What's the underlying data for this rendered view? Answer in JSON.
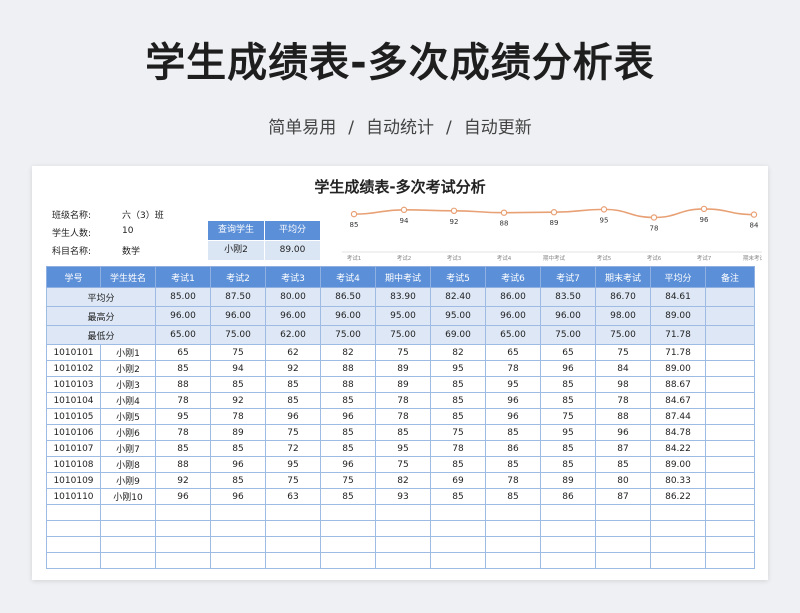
{
  "header": {
    "title": "学生成绩表-多次成绩分析表",
    "tags": [
      "简单易用",
      "自动统计",
      "自动更新"
    ],
    "sep": "/"
  },
  "sheet": {
    "title": "学生成绩表-多次考试分析",
    "info": [
      {
        "label": "班级名称:",
        "value": "六（3）班"
      },
      {
        "label": "学生人数:",
        "value": "10"
      },
      {
        "label": "科目名称:",
        "value": "数学"
      }
    ],
    "query": {
      "header_name": "查询学生",
      "header_avg": "平均分",
      "student": "小刚2",
      "avg": "89.00"
    },
    "columns": [
      "学号",
      "学生姓名",
      "考试1",
      "考试2",
      "考试3",
      "考试4",
      "期中考试",
      "考试5",
      "考试6",
      "考试7",
      "期末考试",
      "平均分",
      "备注"
    ],
    "stats": [
      {
        "label": "平均分",
        "values": [
          "85.00",
          "87.50",
          "80.00",
          "86.50",
          "83.90",
          "82.40",
          "86.00",
          "83.50",
          "86.70",
          "84.61"
        ]
      },
      {
        "label": "最高分",
        "values": [
          "96.00",
          "96.00",
          "96.00",
          "96.00",
          "95.00",
          "95.00",
          "96.00",
          "96.00",
          "98.00",
          "89.00"
        ]
      },
      {
        "label": "最低分",
        "values": [
          "65.00",
          "75.00",
          "62.00",
          "75.00",
          "75.00",
          "69.00",
          "65.00",
          "75.00",
          "75.00",
          "71.78"
        ]
      }
    ],
    "rows": [
      [
        "1010101",
        "小刚1",
        "65",
        "75",
        "62",
        "82",
        "75",
        "82",
        "65",
        "65",
        "75",
        "71.78",
        ""
      ],
      [
        "1010102",
        "小刚2",
        "85",
        "94",
        "92",
        "88",
        "89",
        "95",
        "78",
        "96",
        "84",
        "89.00",
        ""
      ],
      [
        "1010103",
        "小刚3",
        "88",
        "85",
        "85",
        "88",
        "89",
        "85",
        "95",
        "85",
        "98",
        "88.67",
        ""
      ],
      [
        "1010104",
        "小刚4",
        "78",
        "92",
        "85",
        "85",
        "78",
        "85",
        "96",
        "85",
        "78",
        "84.67",
        ""
      ],
      [
        "1010105",
        "小刚5",
        "95",
        "78",
        "96",
        "96",
        "78",
        "85",
        "96",
        "75",
        "88",
        "87.44",
        ""
      ],
      [
        "1010106",
        "小刚6",
        "78",
        "89",
        "75",
        "85",
        "85",
        "75",
        "85",
        "95",
        "96",
        "84.78",
        ""
      ],
      [
        "1010107",
        "小刚7",
        "85",
        "85",
        "72",
        "85",
        "95",
        "78",
        "86",
        "85",
        "87",
        "84.22",
        ""
      ],
      [
        "1010108",
        "小刚8",
        "88",
        "96",
        "95",
        "96",
        "75",
        "85",
        "85",
        "85",
        "85",
        "89.00",
        ""
      ],
      [
        "1010109",
        "小刚9",
        "92",
        "85",
        "75",
        "75",
        "82",
        "69",
        "78",
        "89",
        "80",
        "80.33",
        ""
      ],
      [
        "1010110",
        "小刚10",
        "96",
        "96",
        "63",
        "85",
        "93",
        "85",
        "85",
        "86",
        "87",
        "86.22",
        ""
      ]
    ],
    "empty_rows": 4
  },
  "chart_data": {
    "type": "line",
    "categories": [
      "考试1",
      "考试2",
      "考试3",
      "考试4",
      "期中考试",
      "考试5",
      "考试6",
      "考试7",
      "期末考试"
    ],
    "values": [
      85,
      94,
      92,
      88,
      89,
      95,
      78,
      96,
      84
    ],
    "color": "#e8a075",
    "ylim": [
      60,
      100
    ],
    "grid": false
  }
}
